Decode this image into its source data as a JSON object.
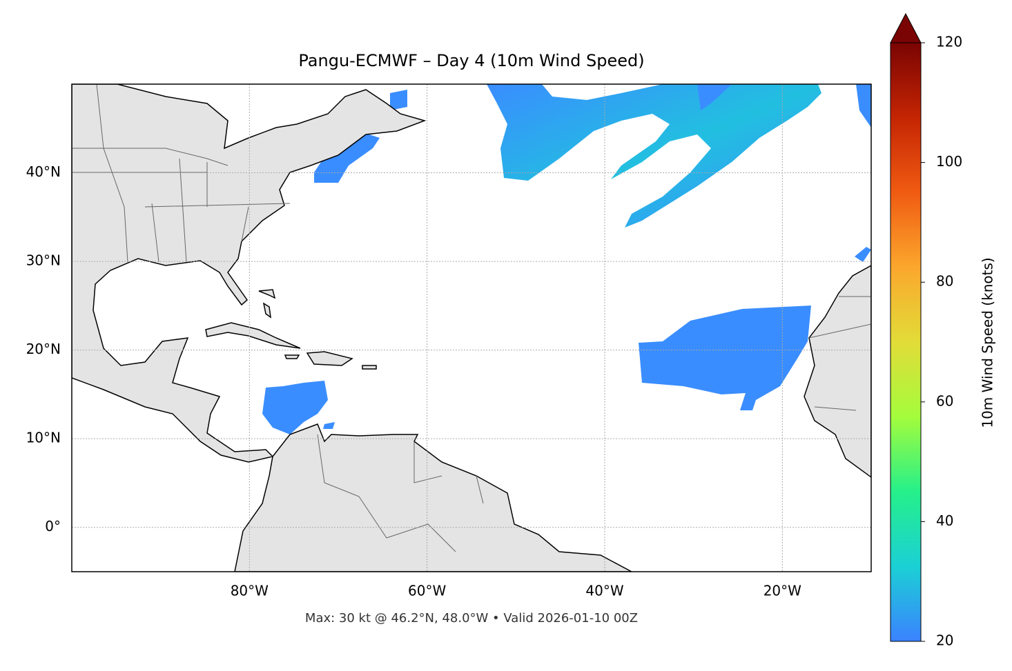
{
  "chart_data": {
    "type": "map",
    "title": "Pangu-ECMWF – Day 4 (10m Wind Speed)",
    "footer": "Max: 30 kt @ 46.2°N, 48.0°W • Valid 2026-01-10 00Z",
    "xlim": [
      -100,
      -10
    ],
    "ylim": [
      -5,
      50
    ],
    "xticks": [
      {
        "value": -80,
        "label": "80°W"
      },
      {
        "value": -60,
        "label": "60°W"
      },
      {
        "value": -40,
        "label": "40°W"
      },
      {
        "value": -20,
        "label": "20°W"
      }
    ],
    "yticks": [
      {
        "value": 0,
        "label": "0°"
      },
      {
        "value": 10,
        "label": "10°N"
      },
      {
        "value": 20,
        "label": "20°N"
      },
      {
        "value": 30,
        "label": "30°N"
      },
      {
        "value": 40,
        "label": "40°N"
      }
    ],
    "grid": true,
    "colorbar": {
      "label": "10m Wind Speed (knots)",
      "lim": [
        20,
        120
      ],
      "ticks": [
        20,
        40,
        60,
        80,
        100,
        120
      ],
      "colors": [
        "#3b82ff",
        "#1bd0d5",
        "#25f08a",
        "#a4fc3c",
        "#e2dc38",
        "#fba72d",
        "#f05b12",
        "#c42503",
        "#7a0403"
      ],
      "extend": "max"
    }
  }
}
